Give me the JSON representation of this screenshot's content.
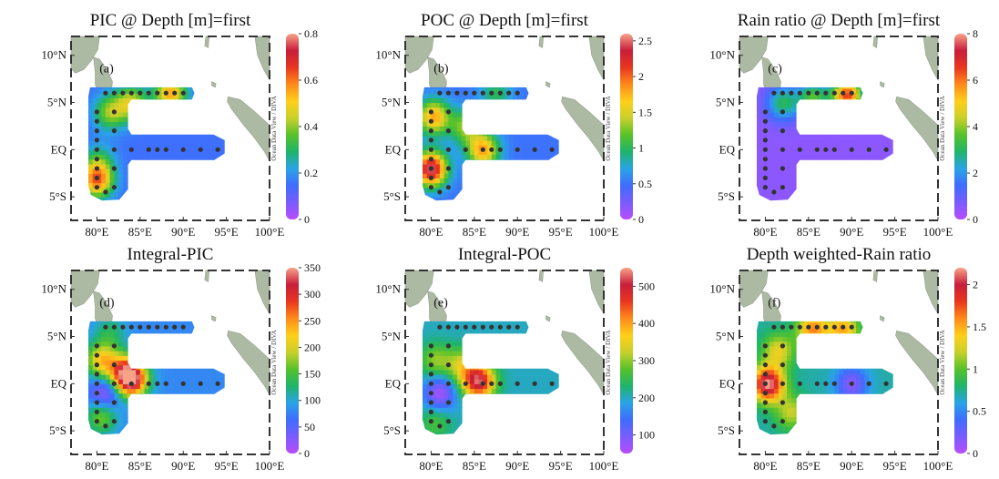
{
  "colors": {
    "land": "#9fae94",
    "land_edge": "#7f8f77",
    "frame": "#333333",
    "station": "#333333",
    "colormap": [
      "#b84dff",
      "#7a5cff",
      "#3f6cff",
      "#2aa3e6",
      "#1fb46a",
      "#57c22a",
      "#c8d02a",
      "#ffcf1a",
      "#ff8a1a",
      "#e8361f",
      "#c81e3a",
      "#f7a38a"
    ]
  },
  "axes": {
    "x_ticks": [
      "80°E",
      "85°E",
      "90°E",
      "95°E",
      "100°E"
    ],
    "y_ticks": [
      "10°N",
      "5°N",
      "EQ",
      "5°S"
    ]
  },
  "credit": "Ocean Data View / DIVA",
  "chart_data": [
    {
      "type": "heatmap",
      "id": "pic-surface",
      "panel_label": "(a)",
      "title": "PIC @ Depth [m]=first",
      "colorbar": {
        "min": 0,
        "max": 0.8,
        "ticks": [
          "0",
          "0.2",
          "0.4",
          "0.6",
          "0.8"
        ],
        "tick_values": [
          0,
          0.2,
          0.4,
          0.6,
          0.8
        ]
      },
      "base_value": 0.15,
      "hotspots": [
        {
          "lon": 81.5,
          "lat": 4.0,
          "value": 0.4
        },
        {
          "lon": 84.0,
          "lat": 5.0,
          "value": 0.45
        },
        {
          "lon": 88.5,
          "lat": 6.0,
          "value": 0.55
        },
        {
          "lon": 80.0,
          "lat": -3.2,
          "value": 0.6
        },
        {
          "lon": 80.2,
          "lat": -1.2,
          "value": 0.3
        }
      ]
    },
    {
      "type": "heatmap",
      "id": "poc-surface",
      "panel_label": "(b)",
      "title": "POC @ Depth [m]=first",
      "colorbar": {
        "min": 0,
        "max": 2.6,
        "ticks": [
          "0",
          "0.5",
          "1",
          "1.5",
          "2",
          "2.5"
        ],
        "tick_values": [
          0,
          0.5,
          1,
          1.5,
          2,
          2.5
        ]
      },
      "base_value": 0.5,
      "hotspots": [
        {
          "lon": 80.0,
          "lat": -2.0,
          "value": 2.5
        },
        {
          "lon": 80.3,
          "lat": 3.5,
          "value": 1.8
        },
        {
          "lon": 86.0,
          "lat": 0.0,
          "value": 1.8
        },
        {
          "lon": 84.0,
          "lat": 2.5,
          "value": 1.3
        },
        {
          "lon": 87.5,
          "lat": 6.0,
          "value": 1.0
        }
      ]
    },
    {
      "type": "heatmap",
      "id": "rain-ratio-surface",
      "panel_label": "(c)",
      "title": "Rain ratio @ Depth [m]=first",
      "colorbar": {
        "min": 0,
        "max": 8,
        "ticks": [
          "0",
          "2",
          "4",
          "6",
          "8"
        ],
        "tick_values": [
          0,
          2,
          4,
          6,
          8
        ]
      },
      "base_value": 0.5,
      "hotspots": [
        {
          "lon": 89.5,
          "lat": 5.8,
          "value": 6.5
        },
        {
          "lon": 85.5,
          "lat": 5.5,
          "value": 3.5
        },
        {
          "lon": 82.0,
          "lat": 5.0,
          "value": 3.0
        }
      ]
    },
    {
      "type": "heatmap",
      "id": "integral-pic",
      "panel_label": "(d)",
      "title": "Integral-PIC",
      "colorbar": {
        "min": 0,
        "max": 350,
        "ticks": [
          "0",
          "50",
          "100",
          "150",
          "200",
          "250",
          "300",
          "350"
        ],
        "tick_values": [
          0,
          50,
          100,
          150,
          200,
          250,
          300,
          350
        ]
      },
      "base_value": 80,
      "hotspots": [
        {
          "lon": 84.0,
          "lat": 0.5,
          "value": 340
        },
        {
          "lon": 83.0,
          "lat": 1.5,
          "value": 200
        },
        {
          "lon": 80.5,
          "lat": 2.5,
          "value": 220
        },
        {
          "lon": 80.5,
          "lat": -3.5,
          "value": 170
        },
        {
          "lon": 81.0,
          "lat": -1.0,
          "value": 5
        },
        {
          "lon": 81.5,
          "lat": 5.5,
          "value": 130
        }
      ]
    },
    {
      "type": "heatmap",
      "id": "integral-poc",
      "panel_label": "(e)",
      "title": "Integral-POC",
      "colorbar": {
        "min": 50,
        "max": 550,
        "ticks": [
          "100",
          "200",
          "300",
          "400",
          "500"
        ],
        "tick_values": [
          100,
          200,
          300,
          400,
          500
        ]
      },
      "base_value": 200,
      "hotspots": [
        {
          "lon": 85.5,
          "lat": 0.3,
          "value": 520
        },
        {
          "lon": 83.5,
          "lat": 2.0,
          "value": 320
        },
        {
          "lon": 80.5,
          "lat": 2.5,
          "value": 300
        },
        {
          "lon": 81.0,
          "lat": -1.0,
          "value": 60
        },
        {
          "lon": 80.5,
          "lat": -4.0,
          "value": 270
        }
      ]
    },
    {
      "type": "heatmap",
      "id": "depth-weighted-rain-ratio",
      "panel_label": "(f)",
      "title": "Depth weighted-Rain ratio",
      "colorbar": {
        "min": 0,
        "max": 2.2,
        "ticks": [
          "0",
          "0.5",
          "1",
          "1.5",
          "2"
        ],
        "tick_values": [
          0,
          0.5,
          1,
          1.5,
          2
        ]
      },
      "base_value": 0.7,
      "hotspots": [
        {
          "lon": 80.3,
          "lat": 0.0,
          "value": 2.2
        },
        {
          "lon": 81.5,
          "lat": 3.5,
          "value": 1.3
        },
        {
          "lon": 85.5,
          "lat": 5.8,
          "value": 1.6
        },
        {
          "lon": 89.0,
          "lat": 5.8,
          "value": 1.5
        },
        {
          "lon": 83.0,
          "lat": -3.0,
          "value": 1.2
        },
        {
          "lon": 90.0,
          "lat": 0.0,
          "value": 0.15
        }
      ]
    }
  ],
  "stations": [
    [
      81,
      6
    ],
    [
      82,
      6
    ],
    [
      83,
      6
    ],
    [
      84,
      6
    ],
    [
      85,
      6
    ],
    [
      86,
      6
    ],
    [
      87,
      6
    ],
    [
      88,
      6
    ],
    [
      89,
      6
    ],
    [
      90,
      6
    ],
    [
      80,
      4
    ],
    [
      80,
      3
    ],
    [
      80,
      2
    ],
    [
      80,
      1
    ],
    [
      80,
      0
    ],
    [
      80,
      -1
    ],
    [
      80,
      -2
    ],
    [
      80,
      -3
    ],
    [
      80,
      -4
    ],
    [
      82,
      4
    ],
    [
      82,
      2
    ],
    [
      82,
      0
    ],
    [
      82,
      -2
    ],
    [
      82,
      -4
    ],
    [
      81,
      -4.5
    ],
    [
      84,
      0
    ],
    [
      86,
      0
    ],
    [
      87,
      0
    ],
    [
      88,
      0
    ],
    [
      90,
      0
    ],
    [
      92,
      0
    ],
    [
      94,
      0
    ]
  ]
}
